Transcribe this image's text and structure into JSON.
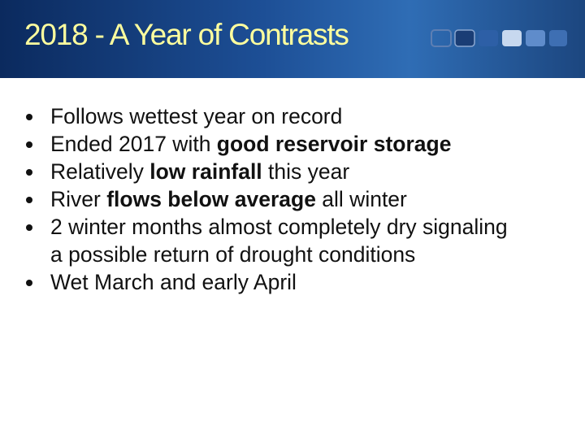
{
  "header": {
    "title": "2018 - A Year of Contrasts"
  },
  "bullets": [
    {
      "segments": [
        {
          "text": "Follows wettest year on record",
          "bold": false
        }
      ]
    },
    {
      "segments": [
        {
          "text": "Ended 2017 with ",
          "bold": false
        },
        {
          "text": "good reservoir storage",
          "bold": true
        }
      ]
    },
    {
      "segments": [
        {
          "text": "Relatively ",
          "bold": false
        },
        {
          "text": "low rainfall",
          "bold": true
        },
        {
          "text": " this year",
          "bold": false
        }
      ]
    },
    {
      "segments": [
        {
          "text": "River ",
          "bold": false
        },
        {
          "text": "flows below average",
          "bold": true
        },
        {
          "text": " all winter",
          "bold": false
        }
      ]
    },
    {
      "segments": [
        {
          "text": "2 winter months almost completely dry signaling a possible return of drought conditions",
          "bold": false
        }
      ]
    },
    {
      "segments": [
        {
          "text": "Wet March and early April",
          "bold": false
        }
      ]
    }
  ]
}
